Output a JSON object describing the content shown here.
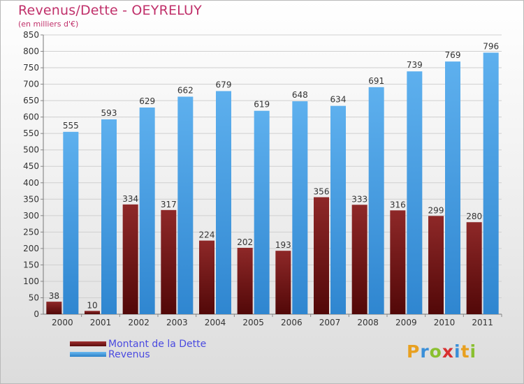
{
  "header": {
    "title": "Revenus/Dette - OEYRELUY",
    "subtitle": "(en milliers d'€)"
  },
  "chart_data": {
    "type": "bar",
    "title": "Revenus/Dette - OEYRELUY",
    "subtitle": "(en milliers d'€)",
    "xlabel": "",
    "ylabel": "",
    "categories": [
      "2000",
      "2001",
      "2002",
      "2003",
      "2004",
      "2005",
      "2006",
      "2007",
      "2008",
      "2009",
      "2010",
      "2011"
    ],
    "series": [
      {
        "name": "Montant de la Dette",
        "color": "#7a1e1e",
        "values": [
          38,
          10,
          334,
          317,
          224,
          202,
          193,
          356,
          333,
          316,
          299,
          280
        ]
      },
      {
        "name": "Revenus",
        "color": "#3f9be0",
        "values": [
          555,
          593,
          629,
          662,
          679,
          619,
          648,
          634,
          691,
          739,
          769,
          796
        ]
      }
    ],
    "ylim": [
      0,
      850
    ],
    "yticks": [
      "0",
      "50",
      "100",
      "150",
      "200",
      "250",
      "300",
      "350",
      "400",
      "450",
      "500",
      "550",
      "600",
      "650",
      "700",
      "750",
      "800",
      "850"
    ],
    "grid": true,
    "legend": "bottom-left"
  },
  "legend": {
    "items": [
      {
        "label": "Montant de la Dette",
        "color": "#7a1e1e"
      },
      {
        "label": "Revenus",
        "color": "#3f9be0"
      }
    ]
  },
  "logo": {
    "letters": [
      "P",
      "r",
      "o",
      "x",
      "i",
      "t",
      "i"
    ],
    "colors": [
      "#e8a020",
      "#3a8fd8",
      "#8ac030",
      "#d83030",
      "#3a8fd8",
      "#e8a020",
      "#8ac030"
    ]
  }
}
